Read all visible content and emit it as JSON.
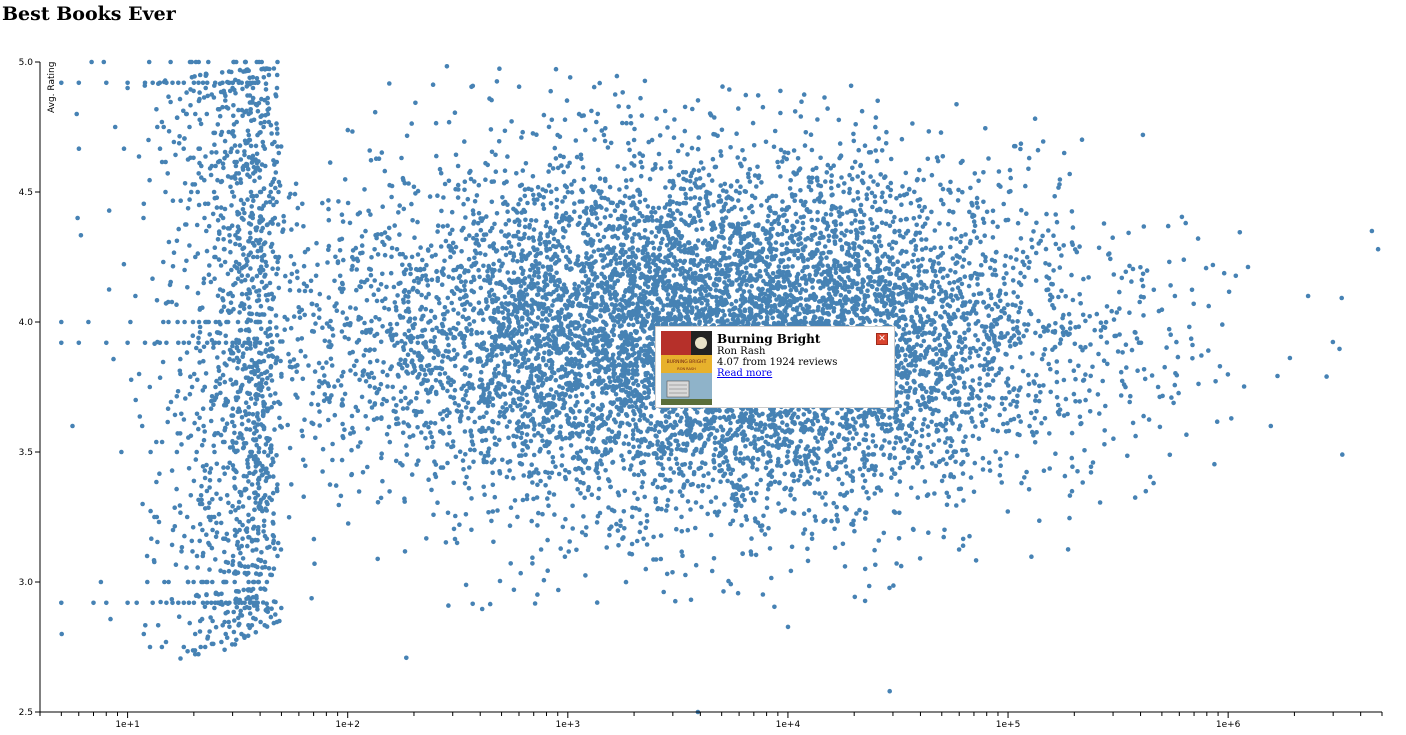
{
  "page": {
    "title": "Best Books Ever"
  },
  "chart_data": {
    "type": "scatter",
    "title": "",
    "xlabel": "",
    "ylabel": "Avg. Rating",
    "x_scale": "log",
    "xlim": [
      4,
      5000000
    ],
    "ylim": [
      2.5,
      5.0
    ],
    "x_ticks": [
      "1e+1",
      "1e+2",
      "1e+3",
      "1e+4",
      "1e+5",
      "1e+6"
    ],
    "y_ticks": [
      "2.5",
      "3.0",
      "3.5",
      "4.0",
      "4.5",
      "5.0"
    ],
    "grid": false,
    "legend": "none",
    "point_color": "#4682b4",
    "distribution": {
      "center_reviews": 5000,
      "center_rating": 3.95,
      "notes_points_are_estimated": true
    },
    "series": [
      {
        "values": [
          {
            "x": 1924,
            "y": 4.07
          },
          {
            "x": 5,
            "y": 4.0
          },
          {
            "x": 10,
            "y": 4.9
          },
          {
            "x": 30,
            "y": 4.9
          },
          {
            "x": 2000,
            "y": 4.7
          },
          {
            "x": 28000,
            "y": 4.73
          },
          {
            "x": 180000,
            "y": 4.65
          },
          {
            "x": 4500000,
            "y": 4.35
          },
          {
            "x": 4800000,
            "y": 4.28
          },
          {
            "x": 3300000,
            "y": 3.49
          },
          {
            "x": 2800000,
            "y": 3.79
          },
          {
            "x": 29000,
            "y": 2.58
          },
          {
            "x": 3900,
            "y": 2.5
          }
        ]
      }
    ]
  },
  "tooltip": {
    "title": "Burning Bright",
    "author": "Ron Rash",
    "stats": "4.07 from 1924 reviews",
    "link": "Read more",
    "cover_text": "BURNING BRIGHT",
    "cover_author": "RON RASH",
    "close_glyph": "✕"
  }
}
